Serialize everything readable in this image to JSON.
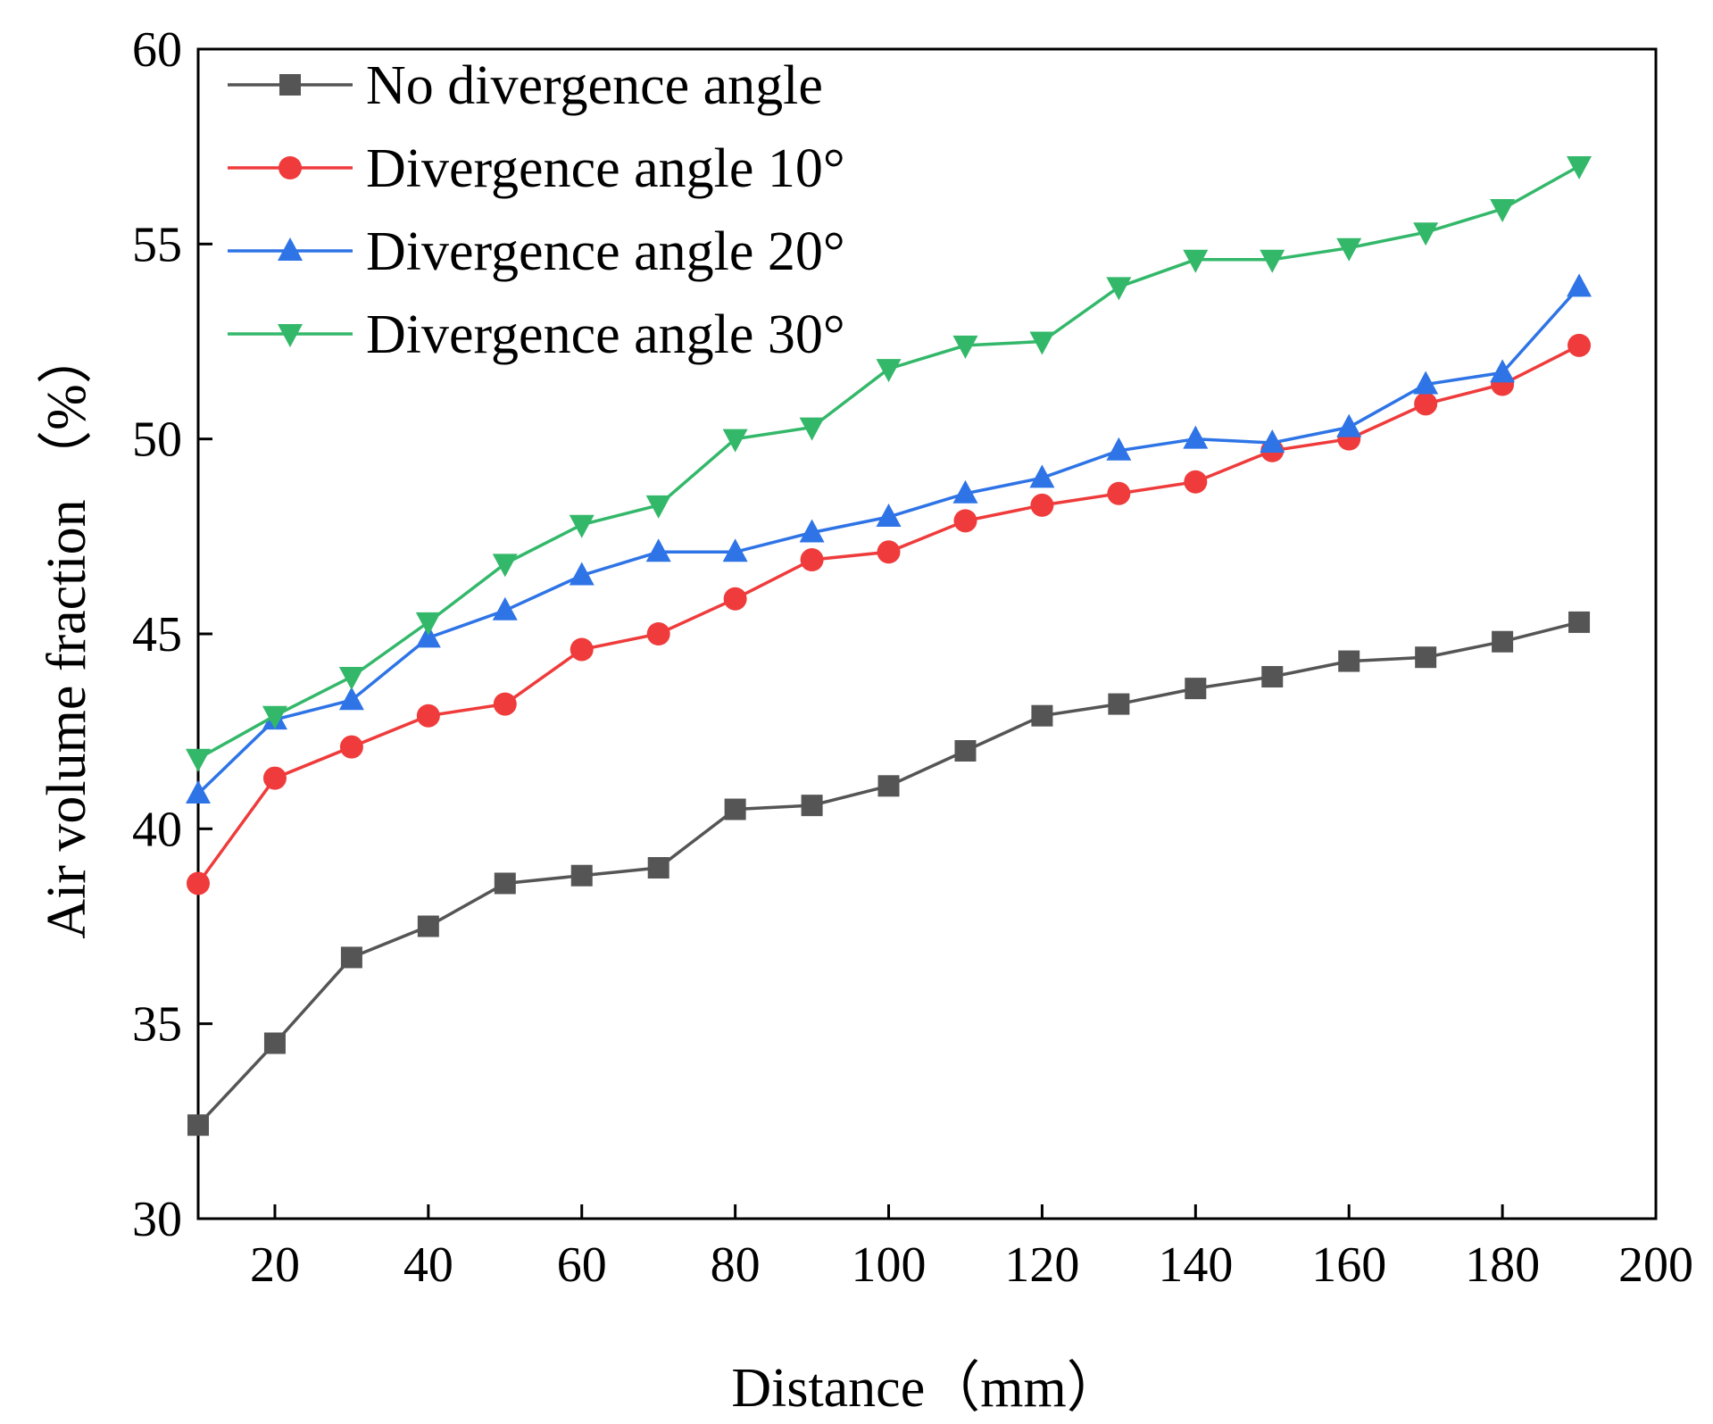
{
  "chart_data": {
    "type": "line",
    "xlabel": "Distance（mm）",
    "ylabel": "Air volume fraction （%）",
    "xlim": [
      10,
      200
    ],
    "ylim": [
      30,
      60
    ],
    "xticks": [
      20,
      40,
      60,
      80,
      100,
      120,
      140,
      160,
      180,
      200
    ],
    "yticks": [
      30,
      35,
      40,
      45,
      50,
      55,
      60
    ],
    "legend_position": "top-left",
    "x": [
      10,
      20,
      30,
      40,
      50,
      60,
      70,
      80,
      90,
      100,
      110,
      120,
      130,
      140,
      150,
      160,
      170,
      180,
      190
    ],
    "series": [
      {
        "name": "No divergence angle",
        "color": "#555555",
        "marker": "square",
        "values": [
          32.4,
          34.5,
          36.7,
          37.5,
          38.6,
          38.8,
          39.0,
          40.5,
          40.6,
          41.1,
          42.0,
          42.9,
          43.2,
          43.6,
          43.9,
          44.3,
          44.4,
          44.8,
          45.3
        ]
      },
      {
        "name": "Divergence angle 10°",
        "color": "#ef3b3b",
        "marker": "circle",
        "values": [
          38.6,
          41.3,
          42.1,
          42.9,
          43.2,
          44.6,
          45.0,
          45.9,
          46.9,
          47.1,
          47.9,
          48.3,
          48.6,
          48.9,
          49.7,
          50.0,
          50.9,
          51.4,
          52.4
        ]
      },
      {
        "name": "Divergence angle 20°",
        "color": "#2e74e6",
        "marker": "triangle-up",
        "values": [
          40.9,
          42.8,
          43.3,
          44.9,
          45.6,
          46.5,
          47.1,
          47.1,
          47.6,
          48.0,
          48.6,
          49.0,
          49.7,
          50.0,
          49.9,
          50.3,
          51.4,
          51.7,
          53.9
        ]
      },
      {
        "name": "Divergence angle 30°",
        "color": "#33b86a",
        "marker": "triangle-down",
        "values": [
          41.8,
          42.9,
          43.9,
          45.3,
          46.8,
          47.8,
          48.3,
          50.0,
          50.3,
          51.8,
          52.4,
          52.5,
          53.9,
          54.6,
          54.6,
          54.9,
          55.3,
          55.9,
          57.0
        ]
      }
    ]
  }
}
